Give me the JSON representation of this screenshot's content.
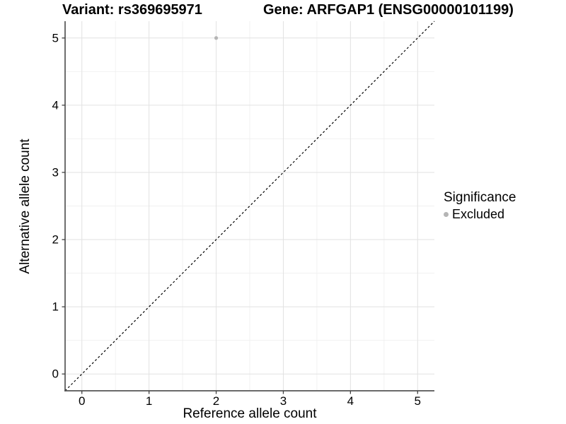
{
  "titles": {
    "variant": "Variant: rs369695971",
    "gene": "Gene: ARFGAP1 (ENSG00000101199)"
  },
  "chart_data": {
    "type": "scatter",
    "title": "Variant: rs369695971   Gene: ARFGAP1 (ENSG00000101199)",
    "xlabel": "Reference allele count",
    "ylabel": "Alternative allele count",
    "xlim": [
      -0.25,
      5.25
    ],
    "ylim": [
      -0.25,
      5.25
    ],
    "x_ticks": [
      0,
      1,
      2,
      3,
      4,
      5
    ],
    "y_ticks": [
      0,
      1,
      2,
      3,
      4,
      5
    ],
    "x_minor": [
      0.5,
      1.5,
      2.5,
      3.5,
      4.5
    ],
    "y_minor": [
      0.5,
      1.5,
      2.5,
      3.5,
      4.5
    ],
    "grid": true,
    "legend_position": "right",
    "legend": {
      "title": "Significance",
      "items": [
        {
          "label": "Excluded",
          "color": "#b5b5b5"
        }
      ]
    },
    "series": [
      {
        "name": "Excluded",
        "color": "#b5b5b5",
        "points": [
          {
            "x": 2,
            "y": 5
          }
        ]
      }
    ],
    "reference_line": {
      "slope": 1,
      "intercept": 0,
      "style": "dashed",
      "color": "#000000"
    }
  },
  "style": {
    "grid_major_color": "#e2e2e2",
    "grid_minor_color": "#f0f0f0",
    "axis_line_color": "#545454",
    "tick_color": "#404040",
    "text_color": "#000000",
    "point_color": "#b5b5b5",
    "background": "#ffffff"
  }
}
